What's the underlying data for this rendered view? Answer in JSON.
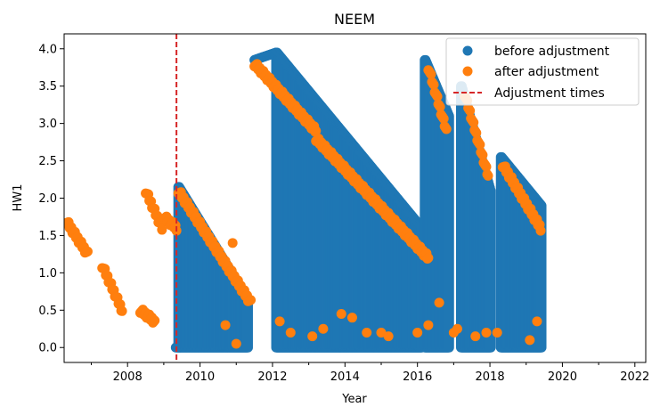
{
  "chart_data": {
    "type": "scatter",
    "title": "NEEM",
    "xlabel": "Year",
    "ylabel": "HW1",
    "xlim": [
      2006.25,
      2022.3
    ],
    "ylim": [
      -0.2,
      4.2
    ],
    "x_ticks": [
      2008,
      2010,
      2012,
      2014,
      2016,
      2018,
      2020,
      2022
    ],
    "x_tick_labels": [
      "2008",
      "2010",
      "2012",
      "2014",
      "2016",
      "2018",
      "2020",
      "2022"
    ],
    "y_ticks": [
      0.0,
      0.5,
      1.0,
      1.5,
      2.0,
      2.5,
      3.0,
      3.5,
      4.0
    ],
    "y_tick_labels": [
      "0.0",
      "0.5",
      "1.0",
      "1.5",
      "2.0",
      "2.5",
      "3.0",
      "3.5",
      "4.0"
    ],
    "grid": false,
    "legend_position": "top-right",
    "legend": {
      "before_label": "before adjustment",
      "after_label": "after adjustment",
      "vline_label": "Adjustment times"
    },
    "colors": {
      "before": "#1f77b4",
      "after": "#ff7f0e",
      "vline": "#d62728"
    },
    "adjustment_times": [
      2009.35
    ],
    "series": [
      {
        "name": "before adjustment",
        "segments": [
          {
            "x": [
              2009.33,
              2009.45
            ],
            "y": [
              0.0,
              0.0
            ]
          },
          {
            "x": [
              2009.4,
              2011.3
            ],
            "y": [
              2.15,
              0.65
            ],
            "fill_to": 0.0
          },
          {
            "x": [
              2011.5,
              2012.1
            ],
            "y": [
              3.85,
              3.95
            ]
          },
          {
            "x": [
              2012.1,
              2016.1
            ],
            "y": [
              3.95,
              1.6
            ],
            "fill_to": 0.0
          },
          {
            "x": [
              2016.2,
              2016.85
            ],
            "y": [
              3.85,
              3.1
            ],
            "fill_to": 0.0
          },
          {
            "x": [
              2017.2,
              2018.0
            ],
            "y": [
              3.5,
              2.1
            ],
            "fill_to": 0.0
          },
          {
            "x": [
              2018.3,
              2019.4
            ],
            "y": [
              2.55,
              1.9
            ],
            "fill_to": 0.0
          }
        ]
      },
      {
        "name": "after adjustment",
        "segments": [
          {
            "x": [
              2006.3,
              2006.9
            ],
            "y": [
              1.7,
              1.25
            ]
          },
          {
            "x": [
              2007.3,
              2007.85
            ],
            "y": [
              1.1,
              0.5
            ]
          },
          {
            "x": [
              2008.35,
              2008.75
            ],
            "y": [
              0.5,
              0.35
            ]
          },
          {
            "x": [
              2008.5,
              2008.95
            ],
            "y": [
              2.1,
              1.6
            ]
          },
          {
            "x": [
              2009.0,
              2009.35
            ],
            "y": [
              1.75,
              1.6
            ]
          },
          {
            "x": [
              2009.4,
              2011.4
            ],
            "y": [
              2.1,
              0.6
            ]
          },
          {
            "x": [
              2011.5,
              2013.2
            ],
            "y": [
              3.8,
              2.9
            ]
          },
          {
            "x": [
              2013.2,
              2016.3
            ],
            "y": [
              2.8,
              1.2
            ]
          },
          {
            "x": [
              2016.3,
              2016.8
            ],
            "y": [
              3.75,
              2.9
            ]
          },
          {
            "x": [
              2017.3,
              2017.95
            ],
            "y": [
              3.4,
              2.3
            ]
          },
          {
            "x": [
              2018.35,
              2019.4
            ],
            "y": [
              2.45,
              1.6
            ]
          }
        ],
        "low_points": {
          "x": [
            2010.7,
            2011.0,
            2012.2,
            2012.5,
            2013.1,
            2013.4,
            2014.2,
            2014.6,
            2015.0,
            2015.2,
            2016.0,
            2016.3,
            2016.6,
            2017.0,
            2017.1,
            2017.6,
            2017.9,
            2018.2,
            2019.1,
            2019.3,
            2010.9,
            2013.9
          ],
          "y": [
            0.3,
            0.05,
            0.35,
            0.2,
            0.15,
            0.25,
            0.4,
            0.2,
            0.2,
            0.15,
            0.2,
            0.3,
            0.6,
            0.2,
            0.25,
            0.15,
            0.2,
            0.2,
            0.1,
            0.35,
            1.4,
            0.45
          ]
        }
      }
    ]
  }
}
